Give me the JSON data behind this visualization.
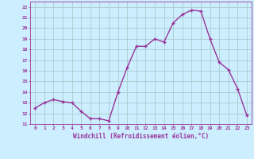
{
  "x": [
    0,
    1,
    2,
    3,
    4,
    5,
    6,
    7,
    8,
    9,
    10,
    11,
    12,
    13,
    14,
    15,
    16,
    17,
    18,
    19,
    20,
    21,
    22,
    23
  ],
  "y": [
    12.5,
    13.0,
    13.3,
    13.1,
    13.0,
    12.2,
    11.5,
    11.5,
    11.3,
    14.0,
    16.3,
    18.3,
    18.3,
    19.0,
    18.7,
    20.5,
    21.3,
    21.7,
    21.6,
    19.0,
    16.8,
    16.1,
    14.3,
    11.8
  ],
  "line_color": "#993399",
  "marker": "+",
  "marker_size": 3.5,
  "linewidth": 1.0,
  "bg_color": "#cceeff",
  "grid_color": "#aacccc",
  "xlabel": "Windchill (Refroidissement éolien,°C)",
  "xlabel_color": "#993399",
  "tick_color": "#993399",
  "ylabel_ticks": [
    11,
    12,
    13,
    14,
    15,
    16,
    17,
    18,
    19,
    20,
    21,
    22
  ],
  "xlim": [
    -0.5,
    23.5
  ],
  "ylim": [
    11,
    22.5
  ],
  "xticks": [
    0,
    1,
    2,
    3,
    4,
    5,
    6,
    7,
    8,
    9,
    10,
    11,
    12,
    13,
    14,
    15,
    16,
    17,
    18,
    19,
    20,
    21,
    22,
    23
  ]
}
